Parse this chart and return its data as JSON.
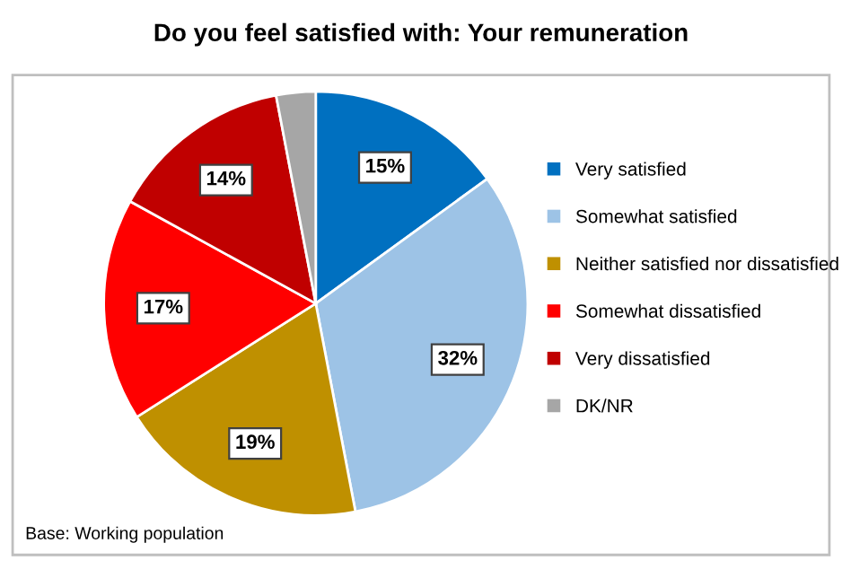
{
  "chart_data": {
    "type": "pie",
    "title": "Do you feel satisfied with: Your remuneration",
    "categories": [
      "Very satisfied",
      "Somewhat satisfied",
      "Neither satisfied nor dissatisfied",
      "Somewhat dissatisfied",
      "Very dissatisfied",
      "DK/NR"
    ],
    "values": [
      15,
      32,
      19,
      17,
      14,
      3
    ],
    "value_labels": [
      "15%",
      "32%",
      "19%",
      "17%",
      "14%",
      null
    ],
    "colors": [
      "#0070c0",
      "#9dc3e6",
      "#bf9000",
      "#ff0000",
      "#c00000",
      "#a6a6a6"
    ],
    "legend": "right",
    "annotations": [
      "Base: Working population"
    ]
  }
}
